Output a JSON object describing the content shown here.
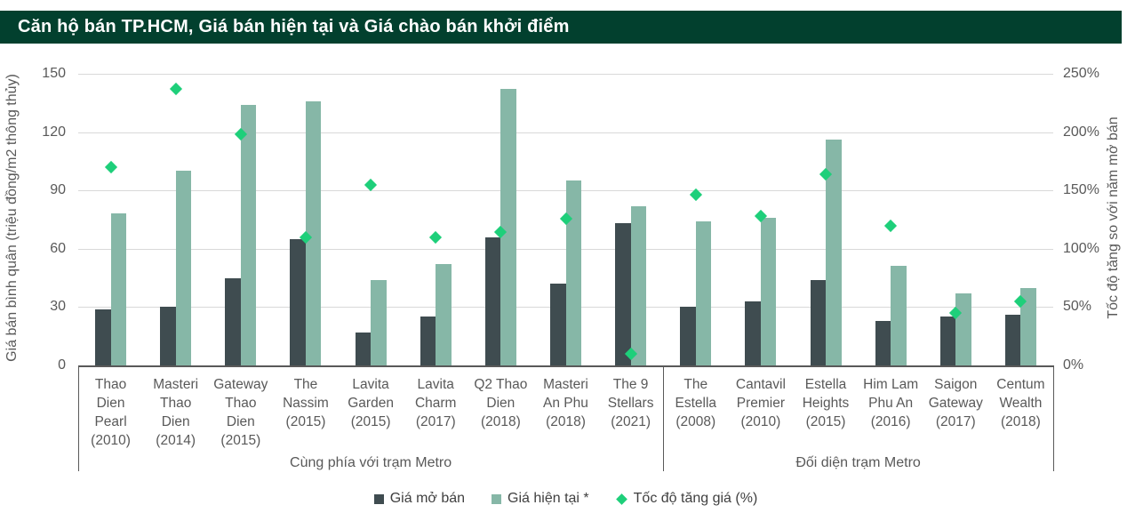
{
  "title": "Căn hộ bán TP.HCM, Giá bán hiện tại và Giá chào bán khởi điểm",
  "colors": {
    "title_bar_bg": "#02402E",
    "title_text": "#FFFFFF",
    "open_price_bar": "#3F4C50",
    "current_price_bar": "#86B7A7",
    "growth_marker": "#1ECF7A",
    "gridline": "#D9D9D9",
    "axis_line": "#595959",
    "axis_text": "#595959",
    "legend_text": "#404040"
  },
  "chart_data": {
    "type": "bar",
    "title": "Căn hộ bán TP.HCM, Giá bán hiện tại và Giá chào bán khởi điểm",
    "left_axis": {
      "label": "Giá bán bình quân (triệu đồng/m2 thông thủy)",
      "ticks": [
        0,
        30,
        60,
        90,
        120,
        150
      ],
      "range": [
        0,
        150
      ],
      "grid": true
    },
    "right_axis": {
      "label": "Tốc độ tăng so với năm mở bán",
      "tick_labels": [
        "0%",
        "50%",
        "100%",
        "150%",
        "200%",
        "250%"
      ],
      "tick_values": [
        0,
        50,
        100,
        150,
        200,
        250
      ],
      "range": [
        0,
        250
      ]
    },
    "categories": [
      "Thao Dien Pearl (2010)",
      "Masteri Thao Dien (2014)",
      "Gateway Thao Dien (2015)",
      "The Nassim (2015)",
      "Lavita Garden (2015)",
      "Lavita Charm (2017)",
      "Q2 Thao Dien (2018)",
      "Masteri An Phu (2018)",
      "The 9 Stellars (2021)",
      "The Estella (2008)",
      "Cantavil Premier (2010)",
      "Estella Heights (2015)",
      "Him Lam Phu An (2016)",
      "Saigon Gateway (2017)",
      "Centum Wealth (2018)"
    ],
    "groups": [
      {
        "label": "Cùng phía với trạm Metro",
        "count": 9
      },
      {
        "label": "Đối diện trạm Metro",
        "count": 6
      }
    ],
    "series": [
      {
        "name": "Giá mở bán",
        "type": "bar",
        "axis": "left",
        "color": "#3F4C50",
        "values": [
          29,
          30,
          45,
          65,
          17,
          25,
          66,
          42,
          73,
          30,
          33,
          44,
          23,
          25,
          26
        ]
      },
      {
        "name": "Giá hiện tại *",
        "type": "bar",
        "axis": "left",
        "color": "#86B7A7",
        "values": [
          78,
          100,
          134,
          136,
          44,
          52,
          142,
          95,
          82,
          74,
          76,
          116,
          51,
          37,
          40
        ]
      },
      {
        "name": "Tốc độ tăng giá (%)",
        "type": "scatter",
        "axis": "right",
        "color": "#1ECF7A",
        "values": [
          170,
          237,
          198,
          110,
          155,
          110,
          114,
          126,
          10,
          146,
          128,
          164,
          120,
          45,
          55
        ]
      }
    ],
    "legend_position": "bottom"
  }
}
